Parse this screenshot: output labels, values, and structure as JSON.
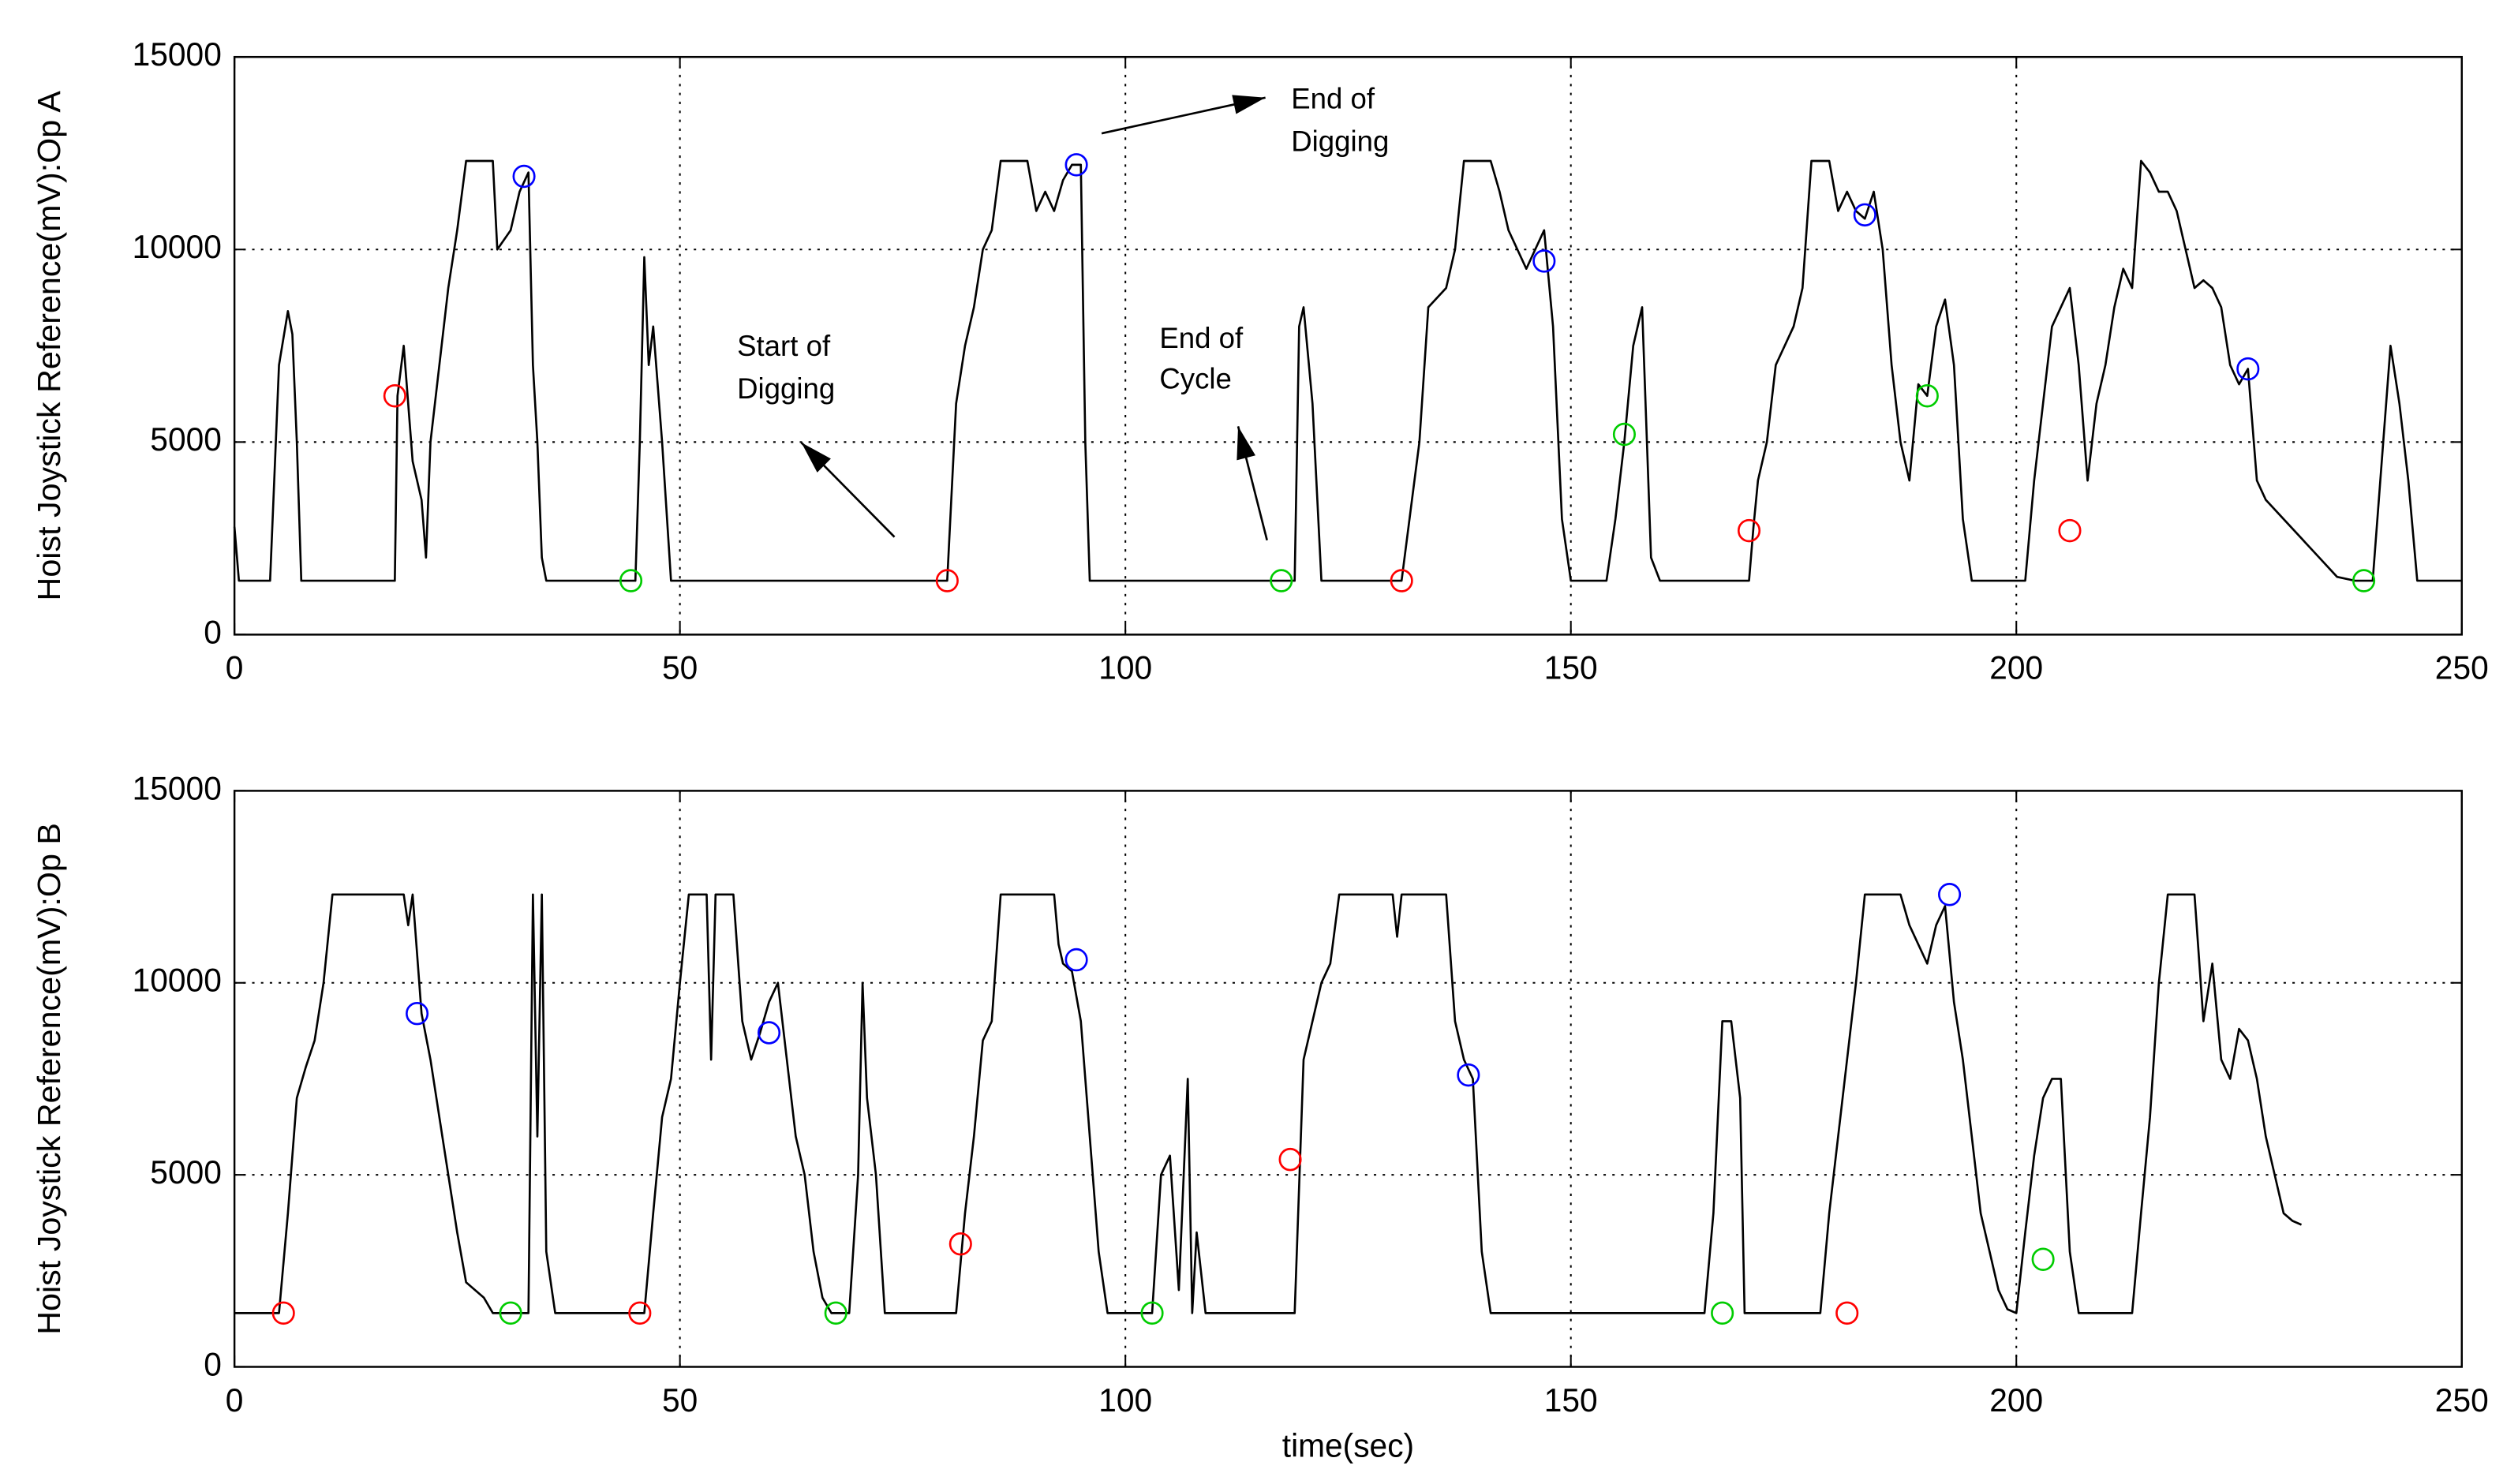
{
  "chart_data": [
    {
      "type": "line",
      "ylabel": "Hoist Joystick Reference(mV):Op A",
      "xlim": [
        0,
        250
      ],
      "ylim": [
        0,
        15000
      ],
      "xticks": [
        0,
        50,
        100,
        150,
        200,
        250
      ],
      "yticks": [
        0,
        5000,
        10000,
        15000
      ],
      "grid": true,
      "series": [
        {
          "color": "#000000",
          "marker": "none",
          "x": [
            0,
            0.5,
            4,
            5,
            6,
            6.5,
            7,
            7.5,
            18,
            18.3,
            19,
            20,
            21,
            21.5,
            22,
            23,
            24,
            25,
            26,
            29,
            29.5,
            31,
            32,
            33,
            33.5,
            34,
            34.5,
            35,
            45,
            45.5,
            46,
            46.5,
            47,
            48,
            49,
            80,
            81,
            82,
            83,
            84,
            85,
            86,
            89,
            90,
            91,
            92,
            93,
            94,
            95,
            95.5,
            96,
            119,
            119.5,
            120,
            121,
            122,
            131,
            133,
            134,
            136,
            137,
            138,
            141,
            142,
            143,
            145,
            146,
            147,
            148,
            149,
            150,
            154,
            155,
            156,
            157,
            158,
            159,
            160,
            170,
            170.5,
            171,
            172,
            173,
            174,
            175,
            176,
            177,
            179,
            180,
            181,
            182,
            183,
            184,
            185,
            186,
            187,
            188,
            189,
            190,
            191,
            192,
            193,
            194,
            195,
            201,
            202,
            203,
            204,
            205,
            206,
            207,
            208,
            209,
            210,
            211,
            212,
            213,
            214,
            215,
            216,
            217,
            218,
            219,
            220,
            221,
            222,
            223,
            224,
            225,
            226,
            227,
            228,
            230,
            232,
            234,
            236,
            238,
            240,
            242,
            243,
            244,
            245,
            250
          ],
          "values": [
            2800,
            1400,
            1400,
            7000,
            8400,
            7800,
            5000,
            1400,
            1400,
            6200,
            7500,
            4500,
            3500,
            2000,
            5000,
            7000,
            9000,
            10500,
            12300,
            12300,
            10000,
            10500,
            11500,
            12000,
            7000,
            5000,
            2000,
            1400,
            1400,
            5000,
            9800,
            7000,
            8000,
            5000,
            1400,
            1400,
            6000,
            7500,
            8500,
            10000,
            10500,
            12300,
            12300,
            11000,
            11500,
            11000,
            11800,
            12200,
            12200,
            5000,
            1400,
            1400,
            8000,
            8500,
            6000,
            1400,
            1400,
            5000,
            8500,
            9000,
            10000,
            12300,
            12300,
            11500,
            10500,
            9500,
            10000,
            10500,
            8000,
            3000,
            1400,
            1400,
            3000,
            5000,
            7500,
            8500,
            2000,
            1400,
            1400,
            2800,
            4000,
            5000,
            7000,
            7500,
            8000,
            9000,
            12300,
            12300,
            11000,
            11500,
            11000,
            10800,
            11500,
            10000,
            7000,
            5000,
            4000,
            6500,
            6200,
            8000,
            8700,
            7000,
            3000,
            1400,
            1400,
            4000,
            6000,
            8000,
            8500,
            9000,
            7000,
            4000,
            6000,
            7000,
            8500,
            9500,
            9000,
            12300,
            12000,
            11500,
            11500,
            11000,
            10000,
            9000,
            9200,
            9000,
            8500,
            7000,
            6500,
            6900,
            4000,
            3500,
            3000,
            2500,
            2000,
            1500,
            1400,
            1400,
            7500,
            6000,
            4000,
            1400,
            1400
          ]
        },
        {
          "color": "#ff0000",
          "marker": "circle",
          "x": [
            18,
            80,
            131,
            170,
            206
          ],
          "values": [
            6200,
            1400,
            1400,
            2700,
            2700
          ]
        },
        {
          "color": "#0000ff",
          "marker": "circle",
          "x": [
            32.5,
            94.5,
            147,
            183,
            226
          ],
          "values": [
            11900,
            12200,
            9700,
            10900,
            6900
          ]
        },
        {
          "color": "#00cc00",
          "marker": "circle",
          "x": [
            44.5,
            117.5,
            156,
            190,
            239
          ],
          "values": [
            1400,
            1400,
            5200,
            6200,
            1400
          ]
        }
      ],
      "annotations": [
        {
          "lines": [
            "End of",
            "Digging"
          ]
        },
        {
          "lines": [
            "Start of",
            "Digging"
          ]
        },
        {
          "lines": [
            "End of",
            "Cycle"
          ]
        }
      ]
    },
    {
      "type": "line",
      "ylabel": "Hoist Joystick Reference(mV):Op B",
      "xlabel": "time(sec)",
      "xlim": [
        0,
        250
      ],
      "ylim": [
        0,
        15000
      ],
      "xticks": [
        0,
        50,
        100,
        150,
        200,
        250
      ],
      "yticks": [
        0,
        5000,
        10000,
        15000
      ],
      "grid": true,
      "series": [
        {
          "color": "#000000",
          "marker": "none",
          "x": [
            0,
            5,
            6,
            7,
            8,
            9,
            10,
            11,
            18,
            19,
            19.5,
            20,
            21,
            22,
            23,
            24,
            25,
            26,
            28,
            29,
            33,
            33.5,
            34,
            34.5,
            35,
            36,
            46,
            47,
            48,
            49,
            50,
            51,
            53,
            53.5,
            54,
            56,
            57,
            58,
            59,
            60,
            61,
            62,
            63,
            64,
            65,
            66,
            67,
            69,
            70,
            70.5,
            71,
            72,
            73,
            81,
            82,
            83,
            84,
            85,
            86,
            92,
            92.5,
            93,
            94,
            95,
            96,
            97,
            98,
            103,
            104,
            105,
            106,
            107,
            107.5,
            108,
            109,
            119,
            120,
            121,
            122,
            123,
            124,
            130,
            130.5,
            131,
            136,
            137,
            138,
            139,
            140,
            141,
            165,
            166,
            167,
            168,
            169,
            169.5,
            178,
            179,
            180,
            181,
            182,
            183,
            187,
            188,
            189,
            190,
            191,
            192,
            193,
            194,
            195,
            196,
            197,
            198,
            199,
            200,
            201,
            202,
            203,
            204,
            205,
            206,
            207,
            213,
            214,
            215,
            216,
            217,
            220,
            221,
            222,
            223,
            224,
            225,
            226,
            227,
            228,
            229,
            230,
            231,
            232
          ],
          "values": [
            1400,
            1400,
            4000,
            7000,
            7800,
            8500,
            10000,
            12300,
            12300,
            12300,
            11500,
            12300,
            9200,
            8000,
            6500,
            5000,
            3500,
            2200,
            1800,
            1400,
            1400,
            12300,
            6000,
            12300,
            3000,
            1400,
            1400,
            4000,
            6500,
            7500,
            10000,
            12300,
            12300,
            8000,
            12300,
            12300,
            9000,
            8000,
            8700,
            9500,
            10000,
            8000,
            6000,
            5000,
            3000,
            1800,
            1400,
            1400,
            5000,
            10000,
            7000,
            5000,
            1400,
            1400,
            4000,
            6000,
            8500,
            9000,
            12300,
            12300,
            11000,
            10500,
            10300,
            9000,
            6000,
            3000,
            1400,
            1400,
            5000,
            5500,
            2000,
            7500,
            1400,
            3500,
            1400,
            1400,
            8000,
            9000,
            10000,
            10500,
            12300,
            12300,
            11200,
            12300,
            12300,
            9000,
            8000,
            7500,
            3000,
            1400,
            1400,
            4000,
            9000,
            9000,
            7000,
            1400,
            1400,
            4000,
            6000,
            8000,
            10000,
            12300,
            12300,
            11500,
            11000,
            10500,
            11500,
            12000,
            9500,
            8000,
            6000,
            4000,
            3000,
            2000,
            1500,
            1400,
            3500,
            5500,
            7000,
            7500,
            7500,
            3000,
            1400,
            1400,
            4000,
            6500,
            10000,
            12300,
            12300,
            9000,
            10500,
            8000,
            7500,
            8800,
            8500,
            7500,
            6000,
            5000,
            4000,
            3800,
            3700
          ]
        },
        {
          "color": "#ff0000",
          "marker": "circle",
          "x": [
            5.5,
            45.5,
            81.5,
            118.5,
            181
          ],
          "values": [
            1400,
            1400,
            3200,
            5400,
            1400
          ]
        },
        {
          "color": "#0000ff",
          "marker": "circle",
          "x": [
            20.5,
            60,
            94.5,
            138.5,
            192.5
          ],
          "values": [
            9200,
            8700,
            10600,
            7600,
            12300
          ]
        },
        {
          "color": "#00cc00",
          "marker": "circle",
          "x": [
            31,
            67.5,
            103,
            167,
            203
          ],
          "values": [
            1400,
            1400,
            1400,
            1400,
            2800
          ]
        }
      ]
    }
  ]
}
